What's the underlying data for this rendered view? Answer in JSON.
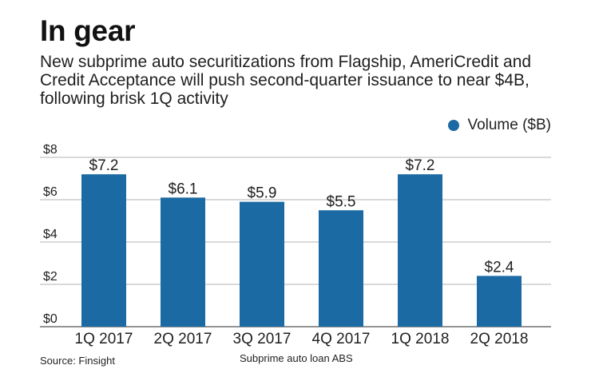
{
  "header": {
    "title": "In gear",
    "subtitle": "New subprime auto securitizations from Flagship, AmeriCredit and Credit Acceptance will push second-quarter issuance to near $4B, following brisk 1Q activity"
  },
  "legend": {
    "label": "Volume ($B)"
  },
  "footer": {
    "source": "Source: Finsight",
    "caption": "Subprime auto loan ABS"
  },
  "colors": {
    "bar": "#1b6aa3",
    "grid": "#b3b3b3",
    "axis": "#555555"
  },
  "chart_data": {
    "type": "bar",
    "title": "In gear",
    "xlabel": "Subprime auto loan ABS",
    "ylabel": "",
    "categories": [
      "1Q 2017",
      "2Q 2017",
      "3Q 2017",
      "4Q 2017",
      "1Q 2018",
      "2Q 2018"
    ],
    "series": [
      {
        "name": "Volume ($B)",
        "values": [
          7.2,
          6.1,
          5.9,
          5.5,
          7.2,
          2.4
        ],
        "labels": [
          "$7.2",
          "$6.1",
          "$5.9",
          "$5.5",
          "$7.2",
          "$2.4"
        ]
      }
    ],
    "ylim": [
      0,
      8
    ],
    "yticks": [
      0,
      2,
      4,
      6,
      8
    ],
    "ytick_labels": [
      "$0",
      "$2",
      "$4",
      "$6",
      "$8"
    ],
    "grid": true,
    "legend_position": "top-right"
  }
}
